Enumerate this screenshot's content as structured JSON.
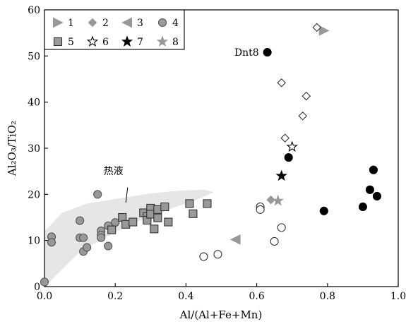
{
  "chart_data": {
    "type": "scatter",
    "title": "",
    "xlabel": "Al/(Al+Fe+Mn)",
    "ylabel": "Al₂O₃/TiO₂",
    "xlim": [
      0,
      1.0
    ],
    "ylim": [
      0,
      60
    ],
    "xticks": [
      "0.0",
      "0.2",
      "0.4",
      "0.6",
      "0.8",
      "1.0"
    ],
    "yticks": [
      "0",
      "10",
      "20",
      "30",
      "40",
      "50",
      "60"
    ],
    "grid": false,
    "legend_position": "top-left",
    "legend": [
      {
        "key": "1",
        "label": "1",
        "marker": "triangle-right",
        "fill": "#999999",
        "stroke": "#999999"
      },
      {
        "key": "2",
        "label": "2",
        "marker": "diamond",
        "fill": "#999999",
        "stroke": "#999999"
      },
      {
        "key": "3",
        "label": "3",
        "marker": "triangle-left",
        "fill": "#999999",
        "stroke": "#999999"
      },
      {
        "key": "4",
        "label": "4",
        "marker": "circle",
        "fill": "#999999",
        "stroke": "#555555"
      },
      {
        "key": "5",
        "label": "5",
        "marker": "square",
        "fill": "#999999",
        "stroke": "#333333"
      },
      {
        "key": "6",
        "label": "6",
        "marker": "star",
        "fill": "#ffffff",
        "stroke": "#000000"
      },
      {
        "key": "7",
        "label": "7",
        "marker": "star",
        "fill": "#000000",
        "stroke": "#000000"
      },
      {
        "key": "8",
        "label": "8",
        "marker": "star",
        "fill": "#999999",
        "stroke": "#999999"
      }
    ],
    "region": {
      "label": "热液",
      "fill": "#e6e6e6",
      "outline": [
        [
          0.0,
          0
        ],
        [
          0.04,
          3
        ],
        [
          0.1,
          7.5
        ],
        [
          0.18,
          11
        ],
        [
          0.26,
          14
        ],
        [
          0.34,
          16.5
        ],
        [
          0.42,
          18.5
        ],
        [
          0.48,
          20.5
        ],
        [
          0.45,
          21
        ],
        [
          0.38,
          20.8
        ],
        [
          0.3,
          20.2
        ],
        [
          0.2,
          19
        ],
        [
          0.12,
          18
        ],
        [
          0.05,
          16
        ],
        [
          0.0,
          12
        ]
      ]
    },
    "series": [
      {
        "key": "1",
        "marker": "triangle-right",
        "fill": "#999999",
        "stroke": "#999999",
        "points": [
          [
            0.79,
            55.5
          ]
        ]
      },
      {
        "key": "2",
        "marker": "diamond",
        "fill": "#ffffff",
        "stroke": "#333333",
        "points": [
          [
            0.77,
            56.2
          ],
          [
            0.67,
            44.2
          ],
          [
            0.74,
            41.3
          ],
          [
            0.73,
            37.0
          ],
          [
            0.68,
            32.2
          ]
        ]
      },
      {
        "key": "2",
        "marker": "diamond",
        "fill": "#999999",
        "stroke": "#999999",
        "points": [
          [
            0.64,
            18.8
          ]
        ]
      },
      {
        "key": "3",
        "marker": "triangle-left",
        "fill": "#999999",
        "stroke": "#999999",
        "points": [
          [
            0.54,
            10.2
          ]
        ]
      },
      {
        "key": "4",
        "marker": "circle",
        "fill": "#000000",
        "stroke": "#000000",
        "points": [
          [
            0.63,
            50.8
          ],
          [
            0.69,
            28.0
          ],
          [
            0.93,
            25.3
          ],
          [
            0.92,
            21.0
          ],
          [
            0.94,
            19.6
          ],
          [
            0.9,
            17.3
          ],
          [
            0.79,
            16.4
          ]
        ]
      },
      {
        "key": "4",
        "marker": "circle",
        "fill": "#ffffff",
        "stroke": "#333333",
        "points": [
          [
            0.61,
            17.3
          ],
          [
            0.61,
            16.7
          ],
          [
            0.67,
            12.8
          ],
          [
            0.65,
            9.8
          ],
          [
            0.49,
            7.0
          ],
          [
            0.45,
            6.5
          ]
        ]
      },
      {
        "key": "4",
        "marker": "circle",
        "fill": "#999999",
        "stroke": "#555555",
        "points": [
          [
            0.0,
            1.0
          ],
          [
            0.02,
            10.8
          ],
          [
            0.02,
            9.6
          ],
          [
            0.1,
            14.3
          ],
          [
            0.1,
            10.6
          ],
          [
            0.11,
            10.6
          ],
          [
            0.11,
            7.6
          ],
          [
            0.12,
            8.5
          ],
          [
            0.15,
            20.0
          ],
          [
            0.16,
            12.1
          ],
          [
            0.16,
            11.2
          ],
          [
            0.16,
            10.6
          ],
          [
            0.18,
            13.2
          ],
          [
            0.18,
            8.8
          ],
          [
            0.2,
            13.9
          ]
        ]
      },
      {
        "key": "5",
        "marker": "square",
        "fill": "#999999",
        "stroke": "#333333",
        "points": [
          [
            0.19,
            12.3
          ],
          [
            0.22,
            15.0
          ],
          [
            0.23,
            13.5
          ],
          [
            0.25,
            14.0
          ],
          [
            0.28,
            16.0
          ],
          [
            0.29,
            15.2
          ],
          [
            0.29,
            14.4
          ],
          [
            0.3,
            17.0
          ],
          [
            0.3,
            15.7
          ],
          [
            0.31,
            12.5
          ],
          [
            0.32,
            16.7
          ],
          [
            0.32,
            14.9
          ],
          [
            0.34,
            17.3
          ],
          [
            0.35,
            14.0
          ],
          [
            0.41,
            18.0
          ],
          [
            0.42,
            15.8
          ],
          [
            0.46,
            18.0
          ]
        ]
      },
      {
        "key": "6",
        "marker": "star",
        "fill": "#ffffff",
        "stroke": "#000000",
        "points": [
          [
            0.7,
            30.3
          ]
        ]
      },
      {
        "key": "7",
        "marker": "star",
        "fill": "#000000",
        "stroke": "#000000",
        "points": [
          [
            0.67,
            24.0
          ]
        ]
      },
      {
        "key": "8",
        "marker": "star",
        "fill": "#999999",
        "stroke": "#999999",
        "points": [
          [
            0.66,
            18.6
          ]
        ]
      }
    ],
    "annotations": [
      {
        "text": "Dnt8",
        "x": 0.63,
        "y": 50.8
      }
    ]
  }
}
